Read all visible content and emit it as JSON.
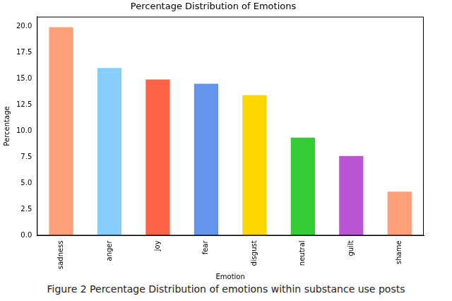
{
  "chart_data": {
    "type": "bar",
    "title": "Percentage Distribution of Emotions",
    "x_label": "Emotion",
    "y_label": "Percentage",
    "caption": "Figure 2 Percentage Distribution of emotions within substance use posts",
    "categories": [
      "sadness",
      "anger",
      "joy",
      "fear",
      "disgust",
      "neutral",
      "guilt",
      "shame"
    ],
    "values": [
      19.9,
      16.0,
      14.9,
      14.5,
      13.4,
      9.35,
      7.6,
      4.2
    ],
    "colors": [
      "#ffa07a",
      "#87cefa",
      "#ff6347",
      "#6495ed",
      "#ffd700",
      "#32cd32",
      "#ba55d3",
      "#ffa07a"
    ],
    "ylim": [
      0,
      20.9
    ],
    "yticks": [
      {
        "value": 0,
        "label": "0.0"
      },
      2.5,
      {
        "value": 5,
        "label": "5.0"
      },
      7.5,
      {
        "value": 10,
        "label": "10.0"
      },
      12.5,
      {
        "value": 15,
        "label": "15.0"
      },
      17.5,
      {
        "value": 20,
        "label": "20.0"
      }
    ],
    "grid": false
  }
}
